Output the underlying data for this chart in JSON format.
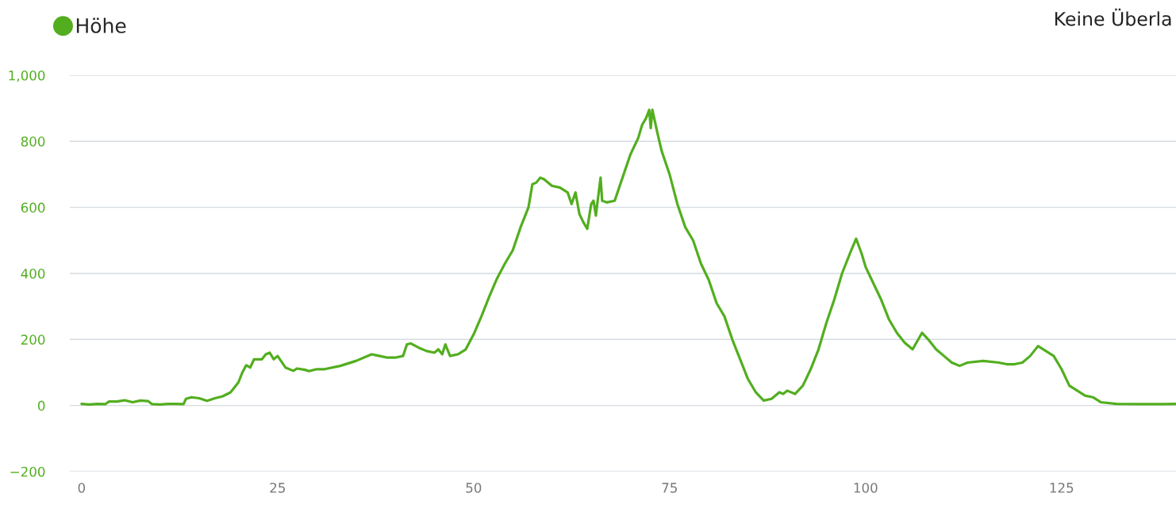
{
  "chart_data": {
    "type": "line",
    "annotations": [
      "Keine Überla"
    ],
    "x": [
      0,
      1,
      2,
      3,
      3.5,
      4.5,
      5.5,
      6.5,
      7.5,
      8.5,
      9,
      10,
      11,
      12,
      13,
      13.3,
      14,
      15,
      16,
      17,
      18,
      19,
      20,
      20.5,
      21,
      21.5,
      22,
      23,
      23.5,
      24,
      24.5,
      25,
      26,
      27,
      27.5,
      28.5,
      29,
      30,
      31,
      33,
      35,
      37,
      38,
      39,
      40,
      41,
      41.5,
      42,
      43,
      44,
      45,
      45.5,
      46,
      46.4,
      47,
      48,
      49,
      50,
      51,
      52,
      53,
      54,
      55,
      56,
      57,
      57.5,
      58,
      58.5,
      59,
      60,
      61,
      62,
      62.5,
      63,
      63.5,
      64,
      64.5,
      65,
      65.3,
      65.6,
      65.8,
      66.2,
      66.4,
      67,
      68,
      69,
      70,
      71,
      71.5,
      72,
      72.4,
      72.6,
      72.8,
      73.5,
      74,
      75,
      76,
      77,
      78,
      79,
      80,
      81,
      82,
      83,
      84,
      85,
      86,
      87,
      88,
      89,
      89.5,
      90,
      91,
      92,
      93,
      94,
      95,
      96,
      97,
      98,
      98.8,
      99.5,
      100,
      101,
      102,
      103,
      104,
      105,
      106,
      107.2,
      108,
      109,
      110,
      111,
      112,
      113,
      115,
      117,
      118,
      119,
      120,
      121,
      122,
      123,
      124,
      125,
      126,
      127,
      128,
      129,
      130,
      132,
      135,
      138,
      139.6
    ],
    "series": [
      {
        "name": "Höhe",
        "color": "#52ae1f",
        "values": [
          5,
          3,
          5,
          4,
          12,
          12,
          16,
          10,
          15,
          13,
          4,
          3,
          5,
          5,
          4,
          20,
          25,
          22,
          14,
          22,
          28,
          40,
          70,
          100,
          122,
          115,
          140,
          140,
          155,
          160,
          140,
          150,
          115,
          105,
          112,
          108,
          104,
          110,
          110,
          120,
          135,
          155,
          150,
          145,
          145,
          150,
          185,
          188,
          175,
          165,
          160,
          170,
          155,
          185,
          150,
          155,
          170,
          215,
          270,
          330,
          385,
          430,
          470,
          540,
          600,
          670,
          675,
          690,
          685,
          665,
          660,
          645,
          610,
          645,
          580,
          555,
          535,
          610,
          620,
          575,
          615,
          690,
          620,
          615,
          620,
          690,
          760,
          810,
          850,
          870,
          895,
          840,
          895,
          820,
          770,
          700,
          610,
          540,
          500,
          430,
          380,
          310,
          270,
          200,
          140,
          80,
          40,
          15,
          20,
          40,
          35,
          45,
          35,
          60,
          110,
          170,
          250,
          320,
          400,
          460,
          505,
          460,
          420,
          370,
          320,
          260,
          220,
          190,
          170,
          220,
          200,
          170,
          150,
          130,
          120,
          130,
          135,
          130,
          125,
          125,
          130,
          150,
          180,
          165,
          150,
          110,
          60,
          45,
          30,
          25,
          10,
          5,
          4,
          4,
          5
        ]
      }
    ],
    "xlim": [
      -1.5,
      139.6
    ],
    "ylim": [
      -200,
      1000
    ],
    "xticks": [
      0,
      25,
      50,
      75,
      100,
      125
    ],
    "yticks": [
      {
        "value": -200,
        "label": "−200"
      },
      0,
      200,
      400,
      600,
      800,
      {
        "value": 1000,
        "label": "1,000"
      }
    ],
    "grid": "y",
    "legend": "top left",
    "marker": "none",
    "line_style": "solid"
  }
}
